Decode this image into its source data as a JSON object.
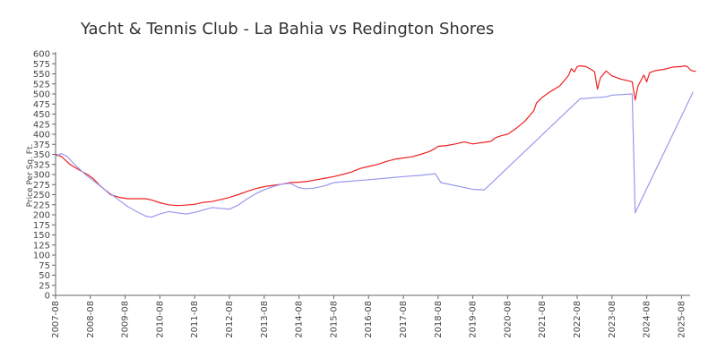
{
  "chart_data": {
    "type": "line",
    "title": "Yacht & Tennis Club - La Bahia vs Redington Shores",
    "xlabel": "",
    "ylabel": "Price Per Sq. Ft.",
    "x_ticks": [
      "2007-08",
      "2008-08",
      "2009-08",
      "2010-08",
      "2011-08",
      "2012-08",
      "2013-08",
      "2014-08",
      "2015-08",
      "2016-08",
      "2017-08",
      "2018-08",
      "2019-08",
      "2020-08",
      "2021-08",
      "2022-08",
      "2023-08",
      "2024-08",
      "2025-08"
    ],
    "y_ticks": [
      0,
      25,
      50,
      75,
      100,
      125,
      150,
      175,
      200,
      225,
      250,
      275,
      300,
      325,
      350,
      375,
      400,
      425,
      450,
      475,
      500,
      525,
      550,
      575,
      600
    ],
    "xlim": [
      "2007-08",
      "2025-09"
    ],
    "ylim": [
      0,
      600
    ],
    "grid": false,
    "legend": "none",
    "series": [
      {
        "color": "#ee2222",
        "points": [
          [
            "2007-08",
            350
          ],
          [
            "2007-10",
            345
          ],
          [
            "2008-01",
            325
          ],
          [
            "2008-04",
            312
          ],
          [
            "2008-07",
            300
          ],
          [
            "2008-09",
            290
          ],
          [
            "2008-11",
            275
          ],
          [
            "2009-01",
            262
          ],
          [
            "2009-03",
            250
          ],
          [
            "2009-06",
            243
          ],
          [
            "2009-09",
            240
          ],
          [
            "2009-12",
            240
          ],
          [
            "2010-03",
            240
          ],
          [
            "2010-05",
            237
          ],
          [
            "2010-08",
            230
          ],
          [
            "2010-11",
            225
          ],
          [
            "2011-02",
            223
          ],
          [
            "2011-05",
            224
          ],
          [
            "2011-08",
            226
          ],
          [
            "2011-11",
            231
          ],
          [
            "2012-02",
            233
          ],
          [
            "2012-05",
            238
          ],
          [
            "2012-08",
            243
          ],
          [
            "2012-11",
            250
          ],
          [
            "2013-02",
            258
          ],
          [
            "2013-05",
            265
          ],
          [
            "2013-08",
            270
          ],
          [
            "2013-11",
            273
          ],
          [
            "2014-02",
            276
          ],
          [
            "2014-05",
            280
          ],
          [
            "2014-08",
            281
          ],
          [
            "2014-11",
            283
          ],
          [
            "2015-02",
            287
          ],
          [
            "2015-05",
            291
          ],
          [
            "2015-08",
            295
          ],
          [
            "2015-11",
            300
          ],
          [
            "2016-02",
            306
          ],
          [
            "2016-05",
            315
          ],
          [
            "2016-08",
            320
          ],
          [
            "2016-11",
            325
          ],
          [
            "2017-02",
            332
          ],
          [
            "2017-05",
            338
          ],
          [
            "2017-08",
            341
          ],
          [
            "2017-11",
            344
          ],
          [
            "2018-02",
            350
          ],
          [
            "2018-05",
            357
          ],
          [
            "2018-07",
            365
          ],
          [
            "2018-08",
            370
          ],
          [
            "2018-11",
            372
          ],
          [
            "2019-02",
            376
          ],
          [
            "2019-05",
            381
          ],
          [
            "2019-08",
            376
          ],
          [
            "2019-11",
            379
          ],
          [
            "2020-02",
            382
          ],
          [
            "2020-04",
            392
          ],
          [
            "2020-06",
            397
          ],
          [
            "2020-08",
            400
          ],
          [
            "2020-11",
            415
          ],
          [
            "2021-02",
            433
          ],
          [
            "2021-05",
            458
          ],
          [
            "2021-06",
            478
          ],
          [
            "2021-08",
            492
          ],
          [
            "2021-11",
            507
          ],
          [
            "2022-02",
            520
          ],
          [
            "2022-05",
            546
          ],
          [
            "2022-06",
            563
          ],
          [
            "2022-07",
            555
          ],
          [
            "2022-08",
            568
          ],
          [
            "2022-09",
            570
          ],
          [
            "2022-11",
            568
          ],
          [
            "2023-01",
            560
          ],
          [
            "2023-02",
            555
          ],
          [
            "2023-03",
            512
          ],
          [
            "2023-04",
            540
          ],
          [
            "2023-06",
            557
          ],
          [
            "2023-08",
            545
          ],
          [
            "2023-11",
            537
          ],
          [
            "2024-02",
            532
          ],
          [
            "2024-03",
            530
          ],
          [
            "2024-04",
            485
          ],
          [
            "2024-05",
            520
          ],
          [
            "2024-07",
            547
          ],
          [
            "2024-08",
            530
          ],
          [
            "2024-09",
            553
          ],
          [
            "2024-11",
            558
          ],
          [
            "2025-02",
            561
          ],
          [
            "2025-05",
            567
          ],
          [
            "2025-08",
            568
          ],
          [
            "2025-09",
            570
          ],
          [
            "2025-10",
            568
          ],
          [
            "2025-11",
            560
          ],
          [
            "2025-12",
            557
          ],
          [
            "2026-01",
            556
          ]
        ]
      },
      {
        "color": "#9999ee",
        "points": [
          [
            "2007-08",
            345
          ],
          [
            "2007-10",
            352
          ],
          [
            "2007-12",
            345
          ],
          [
            "2008-03",
            322
          ],
          [
            "2008-06",
            302
          ],
          [
            "2008-09",
            285
          ],
          [
            "2008-12",
            268
          ],
          [
            "2009-03",
            252
          ],
          [
            "2009-06",
            236
          ],
          [
            "2009-09",
            220
          ],
          [
            "2009-12",
            208
          ],
          [
            "2010-03",
            197
          ],
          [
            "2010-05",
            194
          ],
          [
            "2010-08",
            202
          ],
          [
            "2010-11",
            208
          ],
          [
            "2011-02",
            205
          ],
          [
            "2011-05",
            202
          ],
          [
            "2011-08",
            206
          ],
          [
            "2011-11",
            212
          ],
          [
            "2012-02",
            218
          ],
          [
            "2012-05",
            216
          ],
          [
            "2012-08",
            214
          ],
          [
            "2012-11",
            224
          ],
          [
            "2013-02",
            239
          ],
          [
            "2013-05",
            252
          ],
          [
            "2013-08",
            262
          ],
          [
            "2013-11",
            270
          ],
          [
            "2014-02",
            276
          ],
          [
            "2014-05",
            278
          ],
          [
            "2014-08",
            267
          ],
          [
            "2014-10",
            265
          ],
          [
            "2015-01",
            266
          ],
          [
            "2015-05",
            272
          ],
          [
            "2015-08",
            280
          ],
          [
            "2016-01",
            283
          ],
          [
            "2016-08",
            287
          ],
          [
            "2017-02",
            291
          ],
          [
            "2017-08",
            295
          ],
          [
            "2018-02",
            298
          ],
          [
            "2018-07",
            302
          ],
          [
            "2018-09",
            280
          ],
          [
            "2019-08",
            263
          ],
          [
            "2019-12",
            262
          ],
          [
            "2022-09",
            488
          ],
          [
            "2023-06",
            493
          ],
          [
            "2023-08",
            497
          ],
          [
            "2024-03",
            500
          ],
          [
            "2024-04",
            205
          ],
          [
            "2025-12",
            505
          ]
        ]
      }
    ]
  }
}
